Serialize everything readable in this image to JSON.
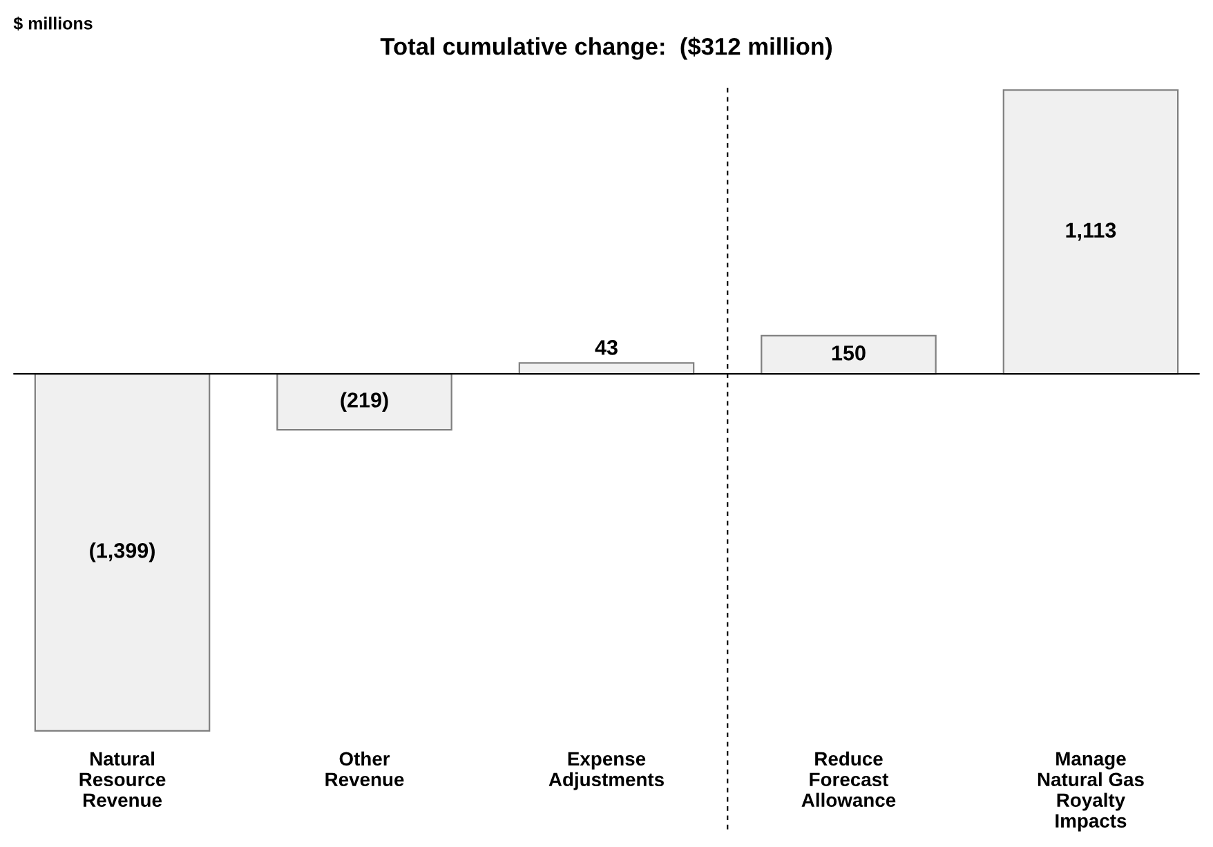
{
  "chart_data": {
    "type": "bar",
    "title": "Total cumulative change:  ($312 million)",
    "ylabel": "$ millions",
    "categories": [
      "Natural\nResource\nRevenue",
      "Other\nRevenue",
      "Expense\nAdjustments",
      "Reduce\nForecast\nAllowance",
      "Manage\nNatural Gas\nRoyalty\nImpacts"
    ],
    "values": [
      -1399,
      -219,
      43,
      150,
      1113
    ],
    "value_labels": [
      "(1,399)",
      "(219)",
      "43",
      "150",
      "1,113"
    ],
    "color": "#f0f0f0",
    "ylim": [
      -1405,
      1130
    ],
    "grid": false
  }
}
